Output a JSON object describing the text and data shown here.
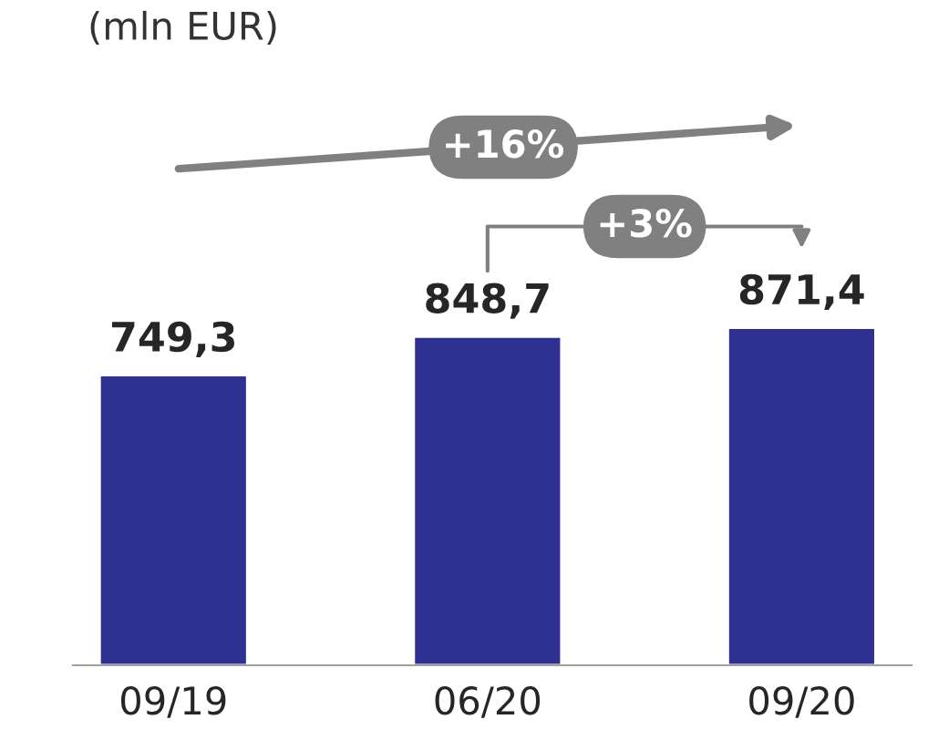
{
  "chart_data": {
    "type": "bar",
    "title": "(mln EUR)",
    "categories": [
      "09/19",
      "06/20",
      "09/20"
    ],
    "values": [
      749.3,
      848.7,
      871.4
    ],
    "value_labels": [
      "749,3",
      "848,7",
      "871,4"
    ],
    "color": "#2e3192",
    "annotations": [
      "+16%",
      "+3%"
    ],
    "grid": false,
    "legend": false
  }
}
